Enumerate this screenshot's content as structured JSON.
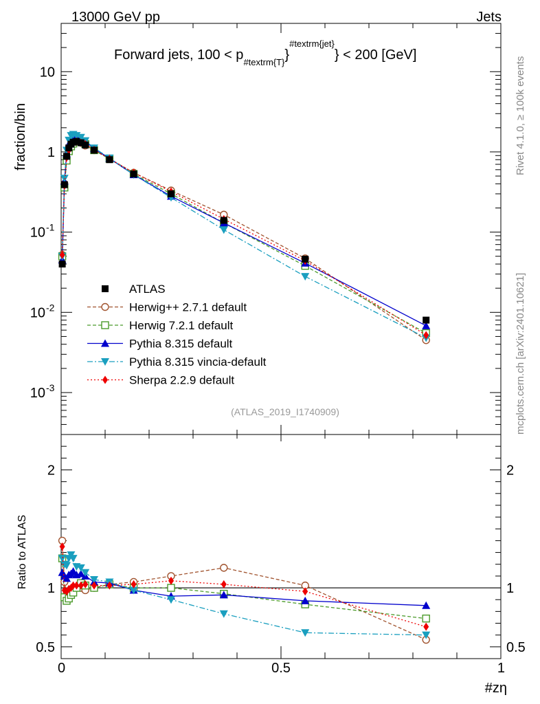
{
  "header": {
    "left": "13000 GeV pp",
    "right": "Jets"
  },
  "side_labels": {
    "rivet": "Rivet 4.1.0, ≥ 100k events",
    "mcplots": "mcplots.cern.ch [arXiv:2401.10621]"
  },
  "analysis_label": "(ATLAS_2019_I1740909)",
  "chart_data": {
    "type": "line",
    "title_parts": {
      "prefix": "Forward jets, 100 < p",
      "sub": "#textrm{T}",
      "sup": "#textrm{jet}",
      "suffix": "} < 200 [GeV]"
    },
    "xlabel": "#zη",
    "ylabel": "fraction/bin",
    "ratio_ylabel": "Ratio to ATLAS",
    "xlim": [
      0,
      1
    ],
    "ylim": [
      0.0003,
      40
    ],
    "ratio_ylim": [
      0.4,
      2.3
    ],
    "x_ticks": [
      "0",
      "0.5",
      "1"
    ],
    "y_ticks": [
      {
        "base": "10",
        "exp": "-3",
        "value": 0.001
      },
      {
        "base": "10",
        "exp": "-2",
        "value": 0.01
      },
      {
        "base": "10",
        "exp": "-1",
        "value": 0.1
      },
      {
        "base": "1",
        "exp": "",
        "value": 1
      },
      {
        "base": "10",
        "exp": "",
        "value": 10
      }
    ],
    "ratio_ticks": [
      "0.5",
      "1",
      "2"
    ],
    "x": [
      0.0025,
      0.0075,
      0.0125,
      0.0175,
      0.0225,
      0.0275,
      0.035,
      0.045,
      0.055,
      0.075,
      0.11,
      0.165,
      0.25,
      0.37,
      0.555,
      0.83
    ],
    "data": {
      "name": "ATLAS",
      "values": [
        0.04,
        0.39,
        0.88,
        1.12,
        1.25,
        1.32,
        1.35,
        1.3,
        1.22,
        1.05,
        0.8,
        0.53,
        0.3,
        0.14,
        0.046,
        0.008
      ]
    },
    "series": [
      {
        "name": "Herwig++ 2.7.1 default",
        "color": "#a0522d",
        "dash": "5,3",
        "marker": "circle-open",
        "values": [
          0.052,
          0.4,
          0.82,
          1.05,
          1.2,
          1.3,
          1.35,
          1.3,
          1.2,
          1.05,
          0.82,
          0.55,
          0.33,
          0.165,
          0.047,
          0.0045
        ],
        "ratio": [
          1.4,
          1.05,
          0.95,
          0.95,
          0.97,
          1.0,
          1.0,
          1.0,
          0.98,
          1.0,
          1.03,
          1.05,
          1.1,
          1.17,
          1.02,
          0.56
        ]
      },
      {
        "name": "Herwig 7.2.1 default",
        "color": "#4a9a2a",
        "dash": "5,3",
        "marker": "square-open",
        "values": [
          0.05,
          0.36,
          0.78,
          1.02,
          1.17,
          1.27,
          1.35,
          1.35,
          1.25,
          1.05,
          0.82,
          0.53,
          0.3,
          0.13,
          0.038,
          0.0055
        ],
        "ratio": [
          1.25,
          0.92,
          0.89,
          0.91,
          0.94,
          0.96,
          1.0,
          1.04,
          1.02,
          1.0,
          1.03,
          1.0,
          1.0,
          0.95,
          0.86,
          0.74
        ]
      },
      {
        "name": "Pythia 8.315 default",
        "color": "#0000cc",
        "dash": "",
        "marker": "triangle-up",
        "values": [
          0.045,
          0.43,
          0.95,
          1.25,
          1.4,
          1.5,
          1.5,
          1.45,
          1.35,
          1.1,
          0.83,
          0.52,
          0.28,
          0.13,
          0.041,
          0.0068
        ],
        "ratio": [
          1.13,
          1.1,
          1.08,
          1.11,
          1.12,
          1.14,
          1.11,
          1.12,
          1.1,
          1.05,
          1.04,
          0.98,
          0.93,
          0.94,
          0.89,
          0.85
        ]
      },
      {
        "name": "Pythia 8.315 vincia-default",
        "color": "#1a9fbf",
        "dash": "8,3,2,3",
        "marker": "triangle-down",
        "values": [
          0.05,
          0.47,
          1.05,
          1.4,
          1.6,
          1.65,
          1.6,
          1.52,
          1.38,
          1.12,
          0.84,
          0.52,
          0.27,
          0.107,
          0.028,
          0.0048
        ],
        "ratio": [
          1.25,
          1.2,
          1.19,
          1.25,
          1.28,
          1.25,
          1.18,
          1.17,
          1.13,
          1.07,
          1.05,
          0.98,
          0.9,
          0.78,
          0.62,
          0.6
        ]
      },
      {
        "name": "Sherpa 2.2.9 default",
        "color": "#ee0000",
        "dash": "2,3",
        "marker": "diamond",
        "values": [
          0.052,
          0.38,
          0.85,
          1.05,
          1.22,
          1.3,
          1.35,
          1.3,
          1.25,
          1.06,
          0.82,
          0.55,
          0.32,
          0.145,
          0.044,
          0.0052
        ],
        "ratio": [
          1.35,
          0.98,
          0.97,
          0.99,
          1.0,
          1.02,
          1.02,
          1.02,
          1.03,
          1.02,
          1.02,
          1.03,
          1.06,
          1.03,
          0.97,
          0.67
        ]
      }
    ]
  }
}
